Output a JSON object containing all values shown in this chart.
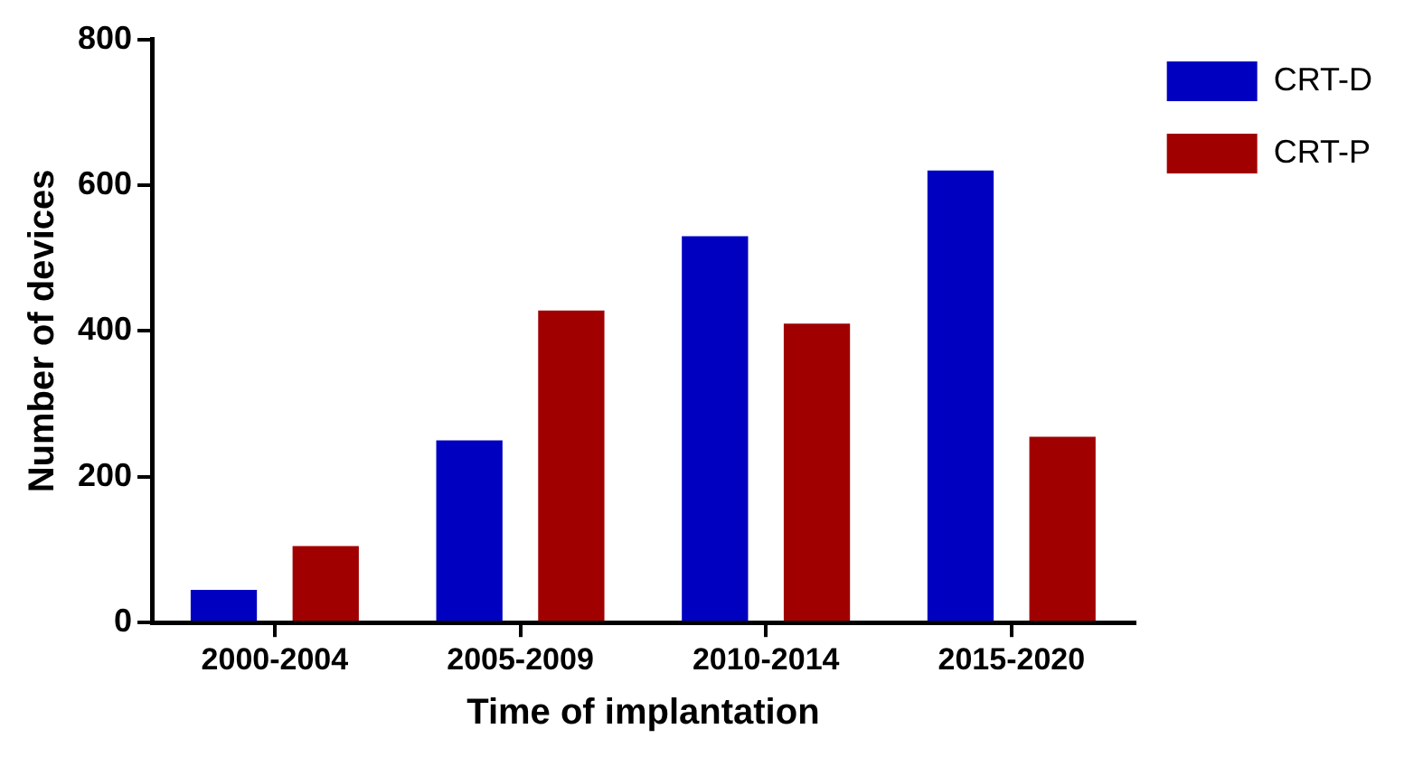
{
  "chart_data": {
    "type": "bar",
    "xlabel": "Time of implantation",
    "ylabel": "Number of devices",
    "categories": [
      "2000-2004",
      "2005-2009",
      "2010-2014",
      "2015-2020"
    ],
    "series": [
      {
        "name": "CRT-D",
        "color": "#0000c0",
        "values": [
          45,
          250,
          530,
          620
        ]
      },
      {
        "name": "CRT-P",
        "color": "#a00000",
        "values": [
          105,
          428,
          410,
          255
        ]
      }
    ],
    "ylim": [
      0,
      800
    ],
    "yticks": [
      0,
      200,
      400,
      600,
      800
    ],
    "grid": false,
    "legend": "top right"
  }
}
